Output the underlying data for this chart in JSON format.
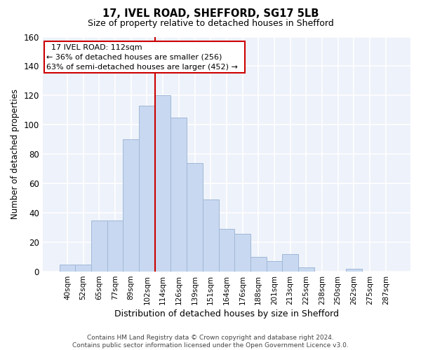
{
  "title1": "17, IVEL ROAD, SHEFFORD, SG17 5LB",
  "title2": "Size of property relative to detached houses in Shefford",
  "xlabel": "Distribution of detached houses by size in Shefford",
  "ylabel": "Number of detached properties",
  "categories": [
    "40sqm",
    "52sqm",
    "65sqm",
    "77sqm",
    "89sqm",
    "102sqm",
    "114sqm",
    "126sqm",
    "139sqm",
    "151sqm",
    "164sqm",
    "176sqm",
    "188sqm",
    "201sqm",
    "213sqm",
    "225sqm",
    "238sqm",
    "250sqm",
    "262sqm",
    "275sqm",
    "287sqm"
  ],
  "values": [
    5,
    5,
    35,
    35,
    90,
    113,
    120,
    105,
    74,
    49,
    29,
    26,
    10,
    7,
    12,
    3,
    0,
    0,
    2,
    0,
    0
  ],
  "bar_color": "#c8d8f0",
  "bar_edge_color": "#a0b8d8",
  "red_line_index": 6,
  "annotation_title": "17 IVEL ROAD: 112sqm",
  "annotation_line1": "← 36% of detached houses are smaller (256)",
  "annotation_line2": "63% of semi-detached houses are larger (452) →",
  "annotation_box_color": "#ffffff",
  "annotation_box_edge_color": "#cc0000",
  "footer1": "Contains HM Land Registry data © Crown copyright and database right 2024.",
  "footer2": "Contains public sector information licensed under the Open Government Licence v3.0.",
  "ylim": [
    0,
    160
  ],
  "yticks": [
    0,
    20,
    40,
    60,
    80,
    100,
    120,
    140,
    160
  ],
  "background_color": "#eef2fa",
  "grid_color": "#ffffff",
  "fig_width": 6.0,
  "fig_height": 5.0,
  "dpi": 100
}
